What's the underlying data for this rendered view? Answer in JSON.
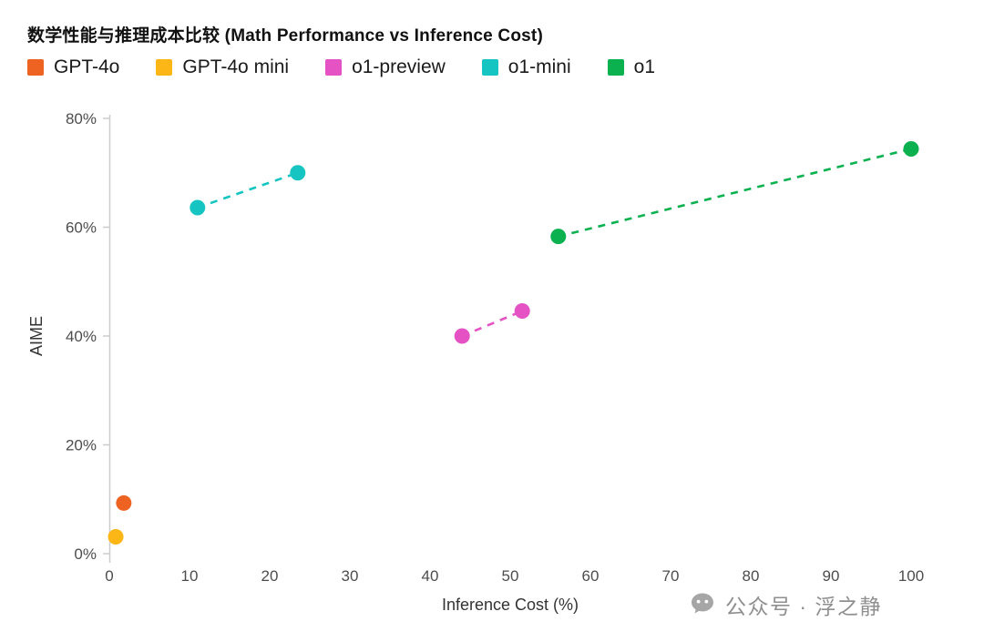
{
  "header": {
    "title": "数学性能与推理成本比较 (Math Performance vs Inference Cost)"
  },
  "watermark": {
    "icon": "wechat-icon",
    "text": "公众号 · 浮之静",
    "color": "#8f8f8f"
  },
  "chart_data": {
    "type": "scatter",
    "title": "数学性能与推理成本比较 (Math Performance vs Inference Cost)",
    "xlabel": "Inference Cost (%)",
    "ylabel": "AIME",
    "xlim": [
      0,
      100
    ],
    "ylim": [
      0,
      80
    ],
    "x_ticks": [
      0,
      10,
      20,
      30,
      40,
      50,
      60,
      70,
      80,
      90,
      100
    ],
    "y_ticks": [
      0,
      20,
      40,
      60,
      80
    ],
    "y_tick_suffix": "%",
    "grid": false,
    "legend_position": "top",
    "axis_color": "#cccccc",
    "tick_label_color": "#4d4d4d",
    "axis_title_color": "#333333",
    "marker_radius": 8.5,
    "series": [
      {
        "name": "GPT-4o",
        "color": "#ee6321",
        "line": "none",
        "points": [
          {
            "x": 1.8,
            "y": 9.3
          }
        ]
      },
      {
        "name": "GPT-4o mini",
        "color": "#fcb615",
        "line": "none",
        "points": [
          {
            "x": 0.8,
            "y": 3.1
          }
        ]
      },
      {
        "name": "o1-preview",
        "color": "#e552c3",
        "line": "dashed",
        "points": [
          {
            "x": 44.0,
            "y": 40.0
          },
          {
            "x": 51.5,
            "y": 44.6
          }
        ]
      },
      {
        "name": "o1-mini",
        "color": "#16c5c1",
        "line": "dashed",
        "points": [
          {
            "x": 11.0,
            "y": 63.6
          },
          {
            "x": 23.5,
            "y": 70.0
          }
        ]
      },
      {
        "name": "o1",
        "color": "#0bb14f",
        "line": "dashed",
        "points": [
          {
            "x": 56.0,
            "y": 58.3
          },
          {
            "x": 100.0,
            "y": 74.4
          }
        ]
      }
    ]
  }
}
